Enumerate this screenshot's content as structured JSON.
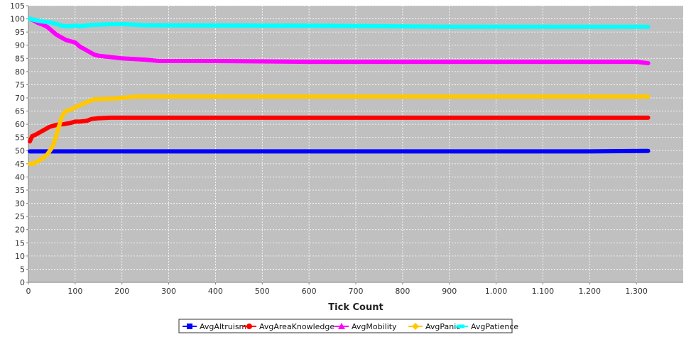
{
  "chart_data": {
    "type": "line",
    "title": "",
    "xlabel": "Tick Count",
    "ylabel": "",
    "xlim": [
      0,
      1400
    ],
    "ylim": [
      0,
      105
    ],
    "grid": true,
    "legend_position": "bottom",
    "x_ticks": [
      0,
      100,
      200,
      300,
      400,
      500,
      600,
      700,
      800,
      900,
      1000,
      1100,
      1200,
      1300
    ],
    "x_tick_labels": [
      "0",
      "100",
      "200",
      "300",
      "400",
      "500",
      "600",
      "700",
      "800",
      "900",
      "1.000",
      "1.100",
      "1.200",
      "1.300"
    ],
    "y_ticks": [
      0,
      5,
      10,
      15,
      20,
      25,
      30,
      35,
      40,
      45,
      50,
      55,
      60,
      65,
      70,
      75,
      80,
      85,
      90,
      95,
      100,
      105
    ],
    "series": [
      {
        "name": "AvgAltruism",
        "color": "#0000ff",
        "marker": "square",
        "x": [
          3,
          100,
          200,
          400,
          600,
          800,
          1000,
          1200,
          1325
        ],
        "values": [
          49.7,
          49.7,
          49.7,
          49.7,
          49.7,
          49.7,
          49.7,
          49.7,
          49.9
        ]
      },
      {
        "name": "AvgAreaKnowledge",
        "color": "#ff0000",
        "marker": "circle",
        "x": [
          3,
          8,
          15,
          25,
          35,
          45,
          55,
          65,
          75,
          90,
          100,
          110,
          125,
          135,
          150,
          175,
          200,
          300,
          500,
          800,
          1100,
          1325
        ],
        "values": [
          53.5,
          55.5,
          56,
          57,
          58,
          59,
          59.5,
          60,
          60,
          60.5,
          61,
          61,
          61.3,
          62,
          62.3,
          62.5,
          62.5,
          62.5,
          62.5,
          62.5,
          62.5,
          62.5
        ]
      },
      {
        "name": "AvgMobility",
        "color": "#ff00ff",
        "marker": "triangle",
        "x": [
          3,
          10,
          20,
          30,
          40,
          50,
          60,
          70,
          80,
          90,
          100,
          110,
          120,
          130,
          140,
          150,
          175,
          200,
          250,
          280,
          400,
          600,
          900,
          1100,
          1300,
          1325
        ],
        "values": [
          100,
          99.5,
          98.5,
          97.8,
          97,
          95.5,
          94,
          93,
          92,
          91.5,
          91,
          89.5,
          88.5,
          87.5,
          86.5,
          86,
          85.5,
          85,
          84.5,
          84,
          84,
          83.7,
          83.7,
          83.7,
          83.7,
          83.2
        ]
      },
      {
        "name": "AvgPanic",
        "color": "#ffc800",
        "marker": "diamond",
        "x": [
          3,
          10,
          20,
          30,
          40,
          50,
          55,
          60,
          65,
          70,
          75,
          80,
          90,
          100,
          110,
          120,
          130,
          140,
          150,
          175,
          200,
          230,
          300,
          500,
          800,
          1100,
          1325
        ],
        "values": [
          45,
          45,
          46,
          47,
          48.5,
          51,
          53,
          56,
          59,
          62,
          64,
          65,
          65.5,
          66.5,
          67.2,
          68,
          68.8,
          69.4,
          69.5,
          69.7,
          70,
          70.5,
          70.5,
          70.5,
          70.5,
          70.5,
          70.5
        ]
      },
      {
        "name": "AvgPatience",
        "color": "#00ffff",
        "marker": "horizontal-rectangle",
        "x": [
          3,
          10,
          20,
          30,
          40,
          50,
          60,
          70,
          80,
          90,
          100,
          110,
          120,
          130,
          150,
          180,
          200,
          250,
          400,
          600,
          900,
          1100,
          1325
        ],
        "values": [
          100,
          99.7,
          99.3,
          99,
          98.8,
          98.5,
          98,
          97.5,
          97.2,
          97.2,
          97.5,
          97.2,
          97.4,
          97.6,
          97.8,
          98,
          98,
          97.6,
          97.5,
          97.4,
          97,
          97,
          97
        ]
      }
    ]
  }
}
